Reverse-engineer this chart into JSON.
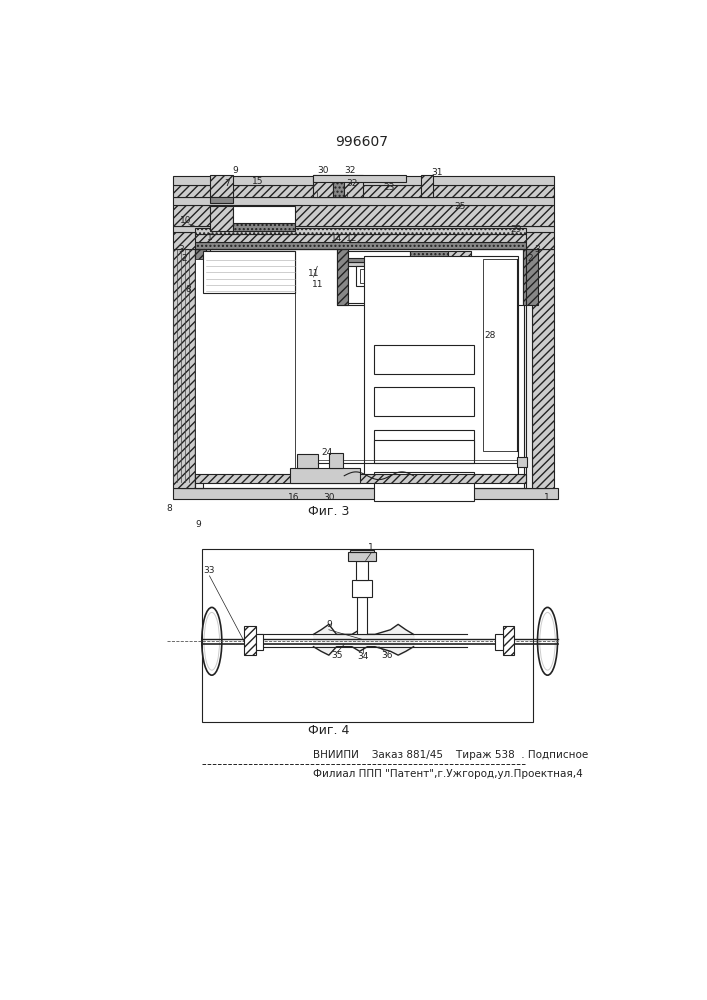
{
  "title": "996607",
  "fig3_label": "Фиг. 3",
  "fig4_label": "Фиг. 4",
  "footer_line1": "ВНИИПИ    Заказ 881/45    Тираж 538  . Подписное",
  "footer_line2": "Филиал ППП \"Патент\",г.Ужгород,ул.Проектная,4",
  "bg_color": "#ffffff",
  "line_color": "#222222",
  "gray_dark": "#555555",
  "gray_mid": "#888888",
  "gray_light": "#cccccc",
  "gray_vlight": "#eeeeee"
}
